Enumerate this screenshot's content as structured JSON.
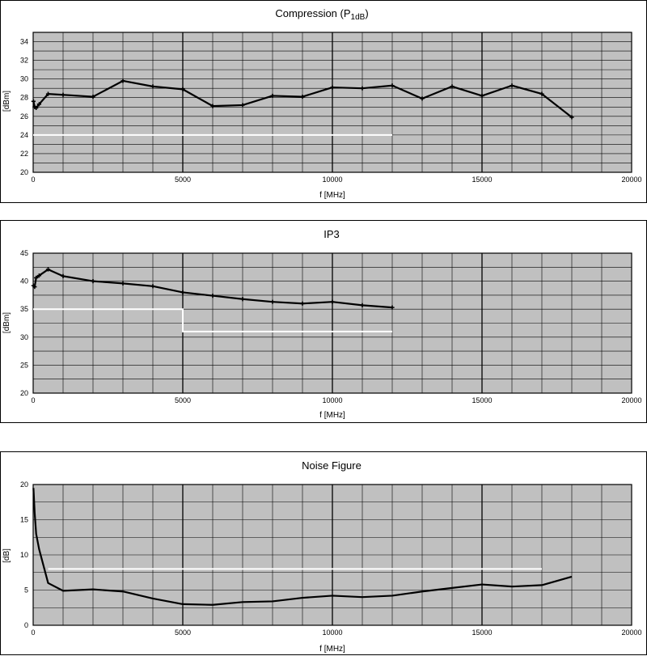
{
  "chart_data": [
    {
      "type": "line",
      "title": "Compression (P",
      "title_sub": "1dB",
      "title_close": ")",
      "xlabel": "f [MHz]",
      "ylabel": "[dBm]",
      "xlim": [
        0,
        20000
      ],
      "ylim": [
        20,
        35
      ],
      "xticks": [
        0,
        5000,
        10000,
        15000,
        20000
      ],
      "yticks": [
        20,
        22,
        24,
        26,
        28,
        30,
        32,
        34
      ],
      "xgrid_step": 1000,
      "ygrid_step": 1,
      "markers": true,
      "grid": true,
      "plot_bg": "#c0c0c0",
      "series": [
        {
          "color": "#000000",
          "x": [
            10,
            50,
            100,
            200,
            500,
            1000,
            2000,
            3000,
            4000,
            5000,
            6000,
            7000,
            8000,
            9000,
            10000,
            11000,
            12000,
            13000,
            14000,
            15000,
            16000,
            17000,
            18000
          ],
          "y": [
            27.6,
            27.0,
            26.9,
            27.3,
            28.4,
            28.3,
            28.1,
            29.8,
            29.2,
            28.9,
            27.1,
            27.2,
            28.2,
            28.1,
            29.1,
            29.0,
            29.3,
            27.9,
            29.2,
            28.2,
            29.3,
            28.4,
            25.9
          ]
        }
      ],
      "limit_lines": [
        {
          "color": "#ffffff",
          "x": [
            0,
            12000
          ],
          "y": [
            24,
            24
          ]
        }
      ]
    },
    {
      "type": "line",
      "title": "IP3",
      "xlabel": "f [MHz]",
      "ylabel": "[dBm]",
      "xlim": [
        0,
        20000
      ],
      "ylim": [
        20,
        45
      ],
      "xticks": [
        0,
        5000,
        10000,
        15000,
        20000
      ],
      "yticks": [
        20,
        25,
        30,
        35,
        40,
        45
      ],
      "xgrid_step": 1000,
      "ygrid_step": 2.5,
      "markers": true,
      "grid": true,
      "plot_bg": "#c0c0c0",
      "series": [
        {
          "color": "#000000",
          "x": [
            10,
            50,
            100,
            200,
            500,
            1000,
            2000,
            3000,
            4000,
            5000,
            6000,
            7000,
            8000,
            9000,
            10000,
            11000,
            12000
          ],
          "y": [
            39.2,
            39.0,
            40.6,
            41.0,
            42.1,
            40.9,
            40.0,
            39.6,
            39.1,
            38.0,
            37.4,
            36.8,
            36.3,
            36.0,
            36.3,
            35.7,
            35.3
          ]
        }
      ],
      "limit_lines": [
        {
          "color": "#ffffff",
          "x": [
            0,
            5000,
            5000,
            12000
          ],
          "y": [
            35,
            35,
            31,
            31
          ]
        }
      ]
    },
    {
      "type": "line",
      "title": "Noise Figure",
      "xlabel": "f [MHz]",
      "ylabel": "[dB]",
      "xlim": [
        0,
        20000
      ],
      "ylim": [
        0,
        20
      ],
      "xticks": [
        0,
        5000,
        10000,
        15000,
        20000
      ],
      "yticks": [
        0,
        5,
        10,
        15,
        20
      ],
      "xgrid_step": 1000,
      "ygrid_step": 2.5,
      "markers": false,
      "grid": true,
      "plot_bg": "#c0c0c0",
      "series": [
        {
          "color": "#000000",
          "x": [
            10,
            50,
            100,
            200,
            500,
            1000,
            2000,
            3000,
            4000,
            5000,
            6000,
            7000,
            8000,
            9000,
            10000,
            11000,
            12000,
            13000,
            14000,
            15000,
            16000,
            17000,
            18000
          ],
          "y": [
            19.5,
            16.0,
            13.0,
            10.8,
            6.0,
            4.9,
            5.1,
            4.8,
            3.8,
            3.0,
            2.9,
            3.3,
            3.4,
            3.9,
            4.2,
            4.0,
            4.2,
            4.8,
            5.3,
            5.8,
            5.5,
            5.7,
            6.9
          ]
        }
      ],
      "limit_lines": [
        {
          "color": "#ffffff",
          "x": [
            500,
            17000
          ],
          "y": [
            8,
            8
          ]
        }
      ]
    }
  ]
}
